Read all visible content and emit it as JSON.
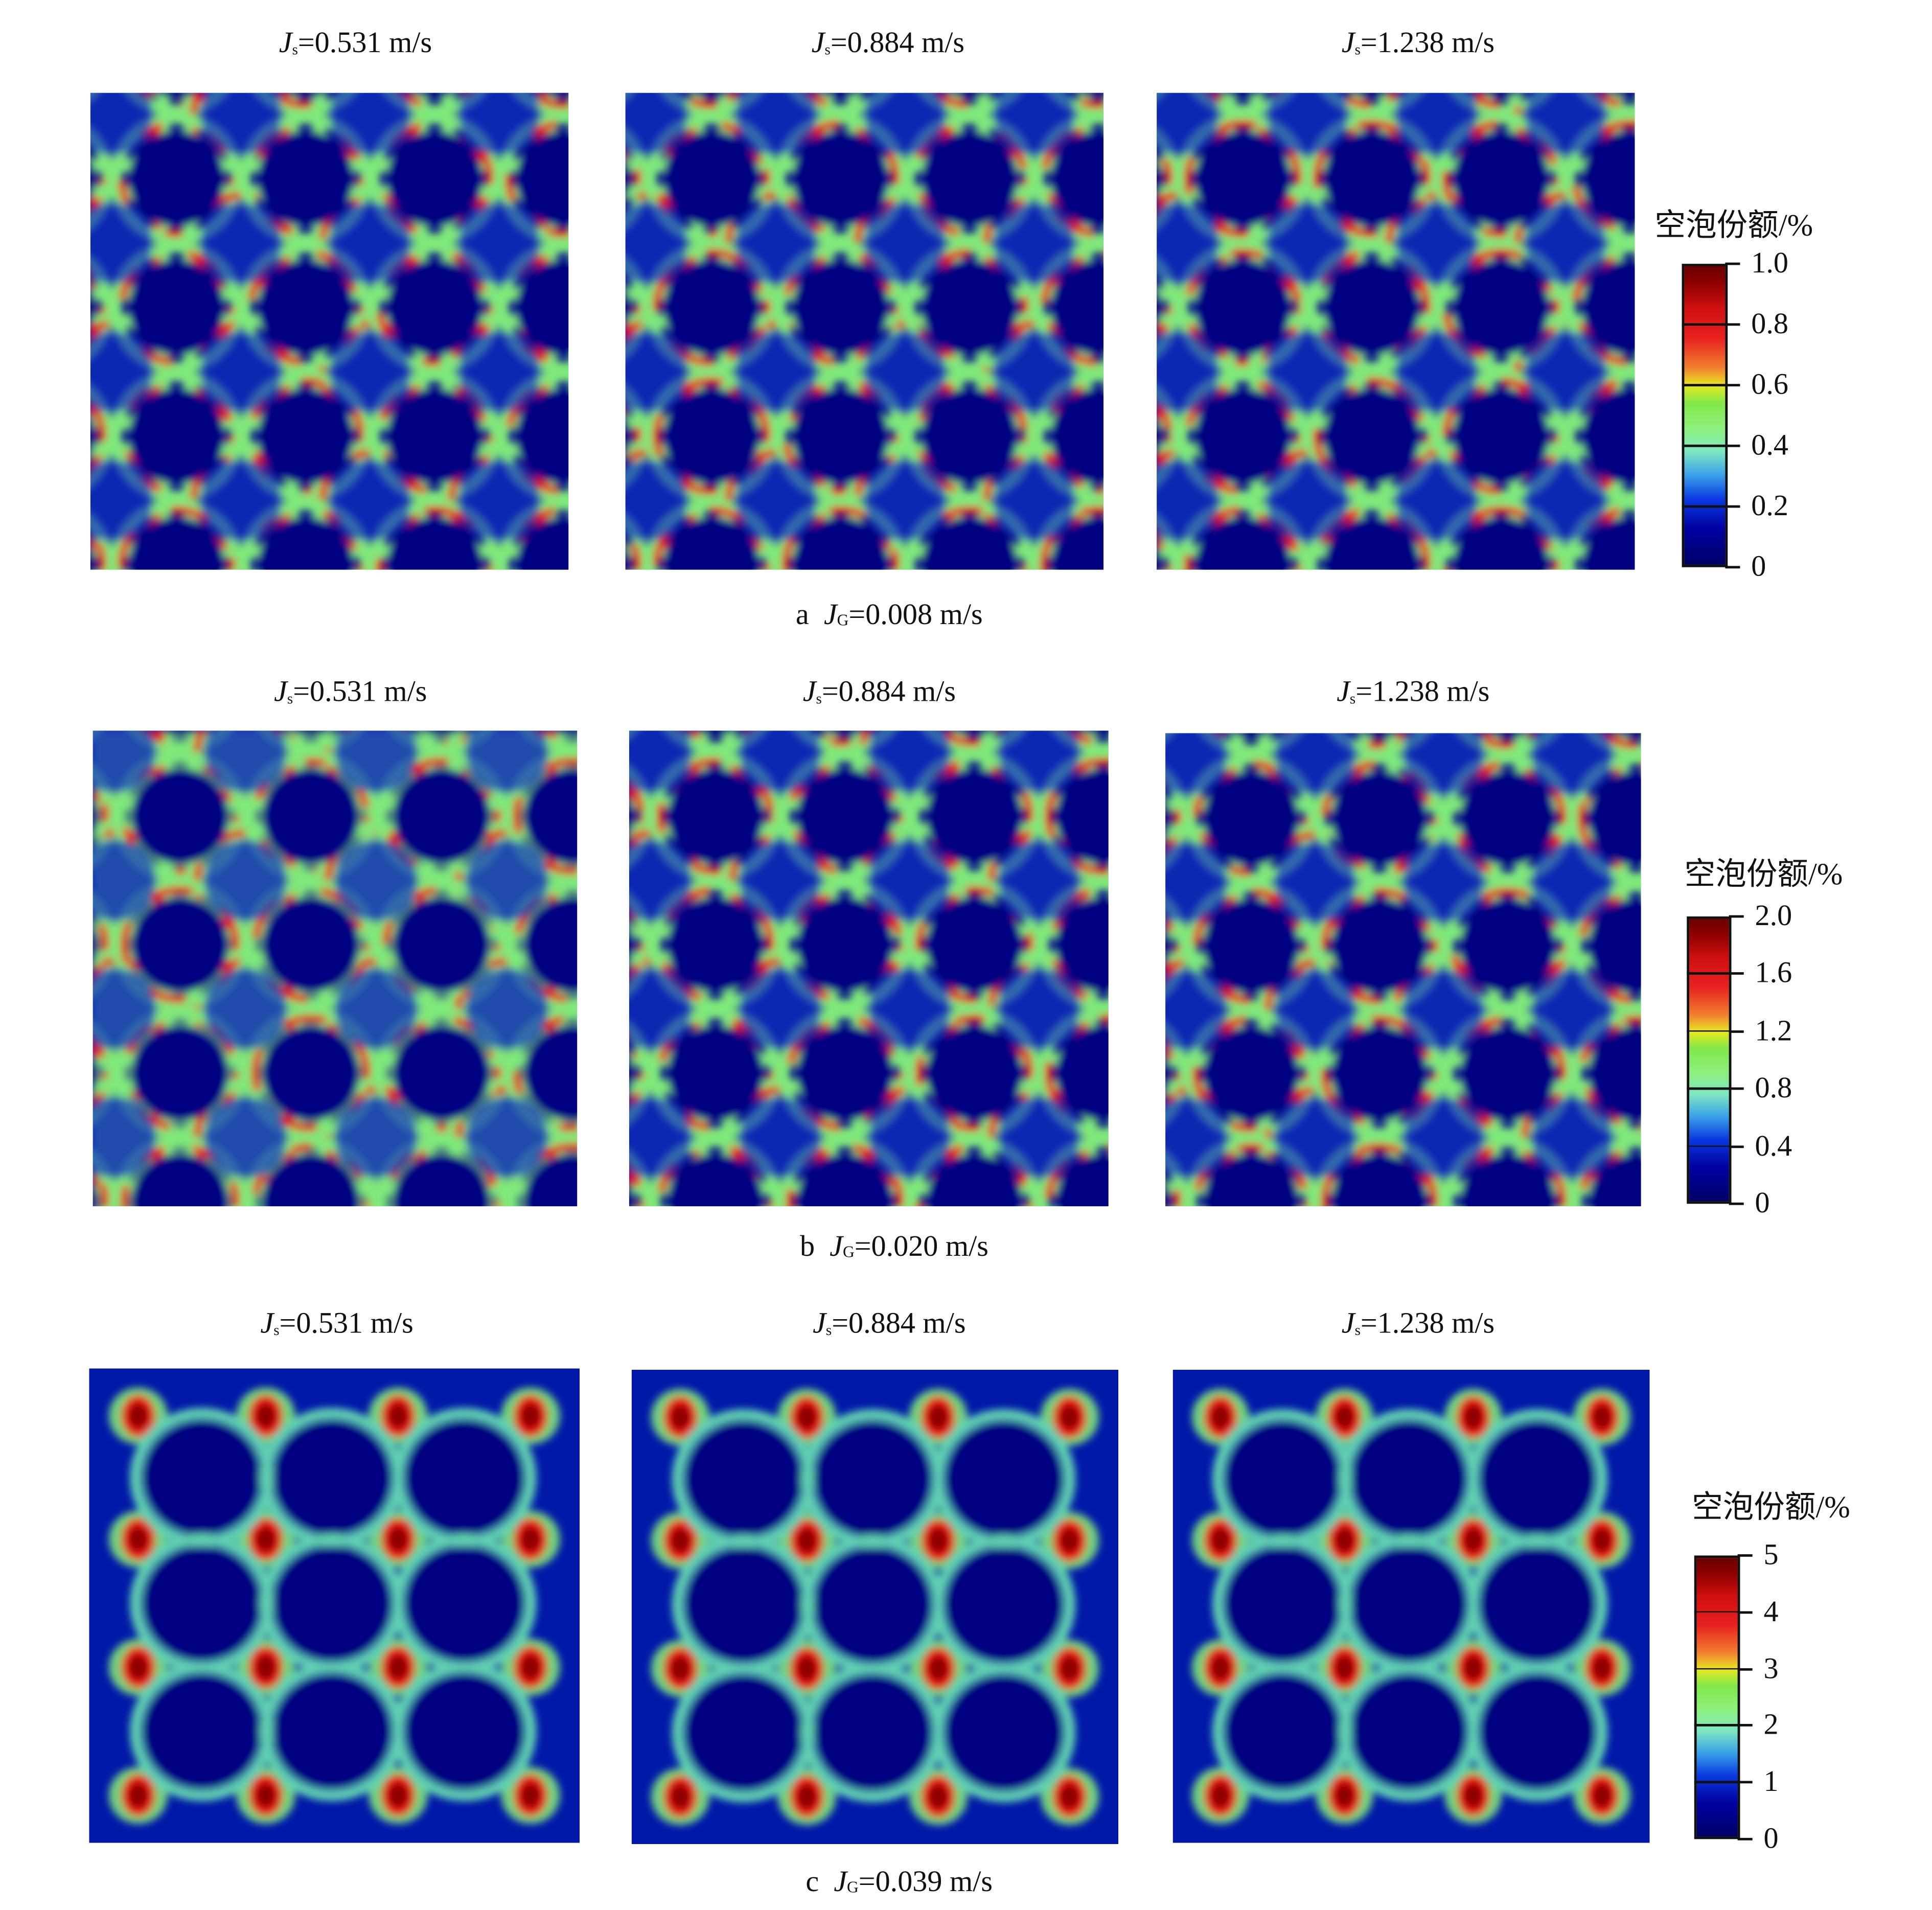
{
  "groups": [
    {
      "caption_letter": "a",
      "caption_var": "J",
      "caption_sub": "G",
      "caption_value": "=0.008 m/s",
      "colorbar": {
        "title": "空泡份额/%",
        "ticks": [
          "1.0",
          "0.8",
          "0.6",
          "0.4",
          "0.2",
          "0"
        ],
        "range": [
          0,
          1.0
        ]
      },
      "panels": [
        {
          "var": "J",
          "sub": "s",
          "value": "=0.531 m/s"
        },
        {
          "var": "J",
          "sub": "s",
          "value": "=0.884 m/s"
        },
        {
          "var": "J",
          "sub": "s",
          "value": "=1.238 m/s"
        }
      ]
    },
    {
      "caption_letter": "b",
      "caption_var": "J",
      "caption_sub": "G",
      "caption_value": "=0.020 m/s",
      "colorbar": {
        "title": "空泡份额/%",
        "ticks": [
          "2.0",
          "1.6",
          "1.2",
          "0.8",
          "0.4",
          "0"
        ],
        "range": [
          0,
          2.0
        ]
      },
      "panels": [
        {
          "var": "J",
          "sub": "s",
          "value": "=0.531 m/s"
        },
        {
          "var": "J",
          "sub": "s",
          "value": "=0.884 m/s"
        },
        {
          "var": "J",
          "sub": "s",
          "value": "=1.238 m/s"
        }
      ]
    },
    {
      "caption_letter": "c",
      "caption_var": "J",
      "caption_sub": "G",
      "caption_value": "=0.039 m/s",
      "colorbar": {
        "title": "空泡份额/%",
        "ticks": [
          "5",
          "4",
          "3",
          "2",
          "1",
          "0"
        ],
        "range": [
          0,
          5
        ]
      },
      "panels": [
        {
          "var": "J",
          "sub": "s",
          "value": "=0.531 m/s"
        },
        {
          "var": "J",
          "sub": "s",
          "value": "=0.884 m/s"
        },
        {
          "var": "J",
          "sub": "s",
          "value": "=1.238 m/s"
        }
      ]
    }
  ],
  "chart_data": {
    "type": "heatmap",
    "title": "",
    "colormap": "jet",
    "colors": {
      "low": "#000080",
      "mid": "#7fe84a",
      "high": "#8a0000"
    },
    "rows": [
      "JG=0.008 m/s",
      "JG=0.020 m/s",
      "JG=0.039 m/s"
    ],
    "columns": [
      "Js=0.531 m/s",
      "Js=0.884 m/s",
      "Js=1.238 m/s"
    ],
    "colorbar_label": "空泡份额/%",
    "colorbar_ranges": [
      [
        0,
        1.0
      ],
      [
        0,
        2.0
      ],
      [
        0,
        5
      ]
    ]
  }
}
